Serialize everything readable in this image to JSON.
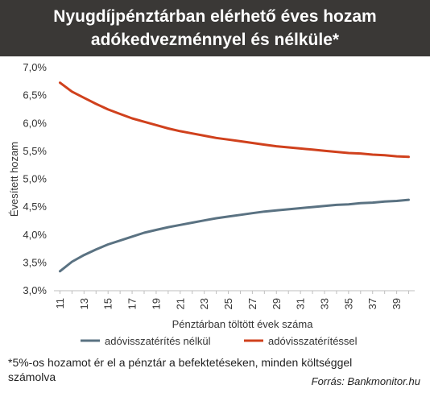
{
  "header": {
    "title_line1": "Nyugdíjpénztárban elérhető éves hozam",
    "title_line2": "adókedvezménnyel és nélküle*"
  },
  "chart_data": {
    "type": "line",
    "title": "Nyugdíjpénztárban elérhető éves hozam adókedvezménnyel és nélküle*",
    "xlabel": "Pénztárban töltött évek száma",
    "ylabel": "Évesített hozam",
    "x": [
      11,
      12,
      13,
      14,
      15,
      16,
      17,
      18,
      19,
      20,
      21,
      22,
      23,
      24,
      25,
      26,
      27,
      28,
      29,
      30,
      31,
      32,
      33,
      34,
      35,
      36,
      37,
      38,
      39,
      40
    ],
    "xticks": [
      11,
      13,
      15,
      17,
      19,
      21,
      23,
      25,
      27,
      29,
      31,
      33,
      35,
      37,
      39
    ],
    "yticks": [
      3.0,
      3.5,
      4.0,
      4.5,
      5.0,
      5.5,
      6.0,
      6.5,
      7.0
    ],
    "ytick_labels": [
      "3,0%",
      "3,5%",
      "4,0%",
      "4,5%",
      "5,0%",
      "5,5%",
      "6,0%",
      "6,5%",
      "7,0%"
    ],
    "ylim": [
      3.0,
      7.0
    ],
    "grid": false,
    "legend_position": "bottom",
    "series": [
      {
        "name": "adóvisszatérítés nélkül",
        "color": "#5a7282",
        "values": [
          3.35,
          3.52,
          3.64,
          3.74,
          3.83,
          3.9,
          3.97,
          4.04,
          4.09,
          4.14,
          4.18,
          4.22,
          4.26,
          4.3,
          4.33,
          4.36,
          4.39,
          4.42,
          4.44,
          4.46,
          4.48,
          4.5,
          4.52,
          4.54,
          4.55,
          4.57,
          4.58,
          4.6,
          4.61,
          4.63
        ]
      },
      {
        "name": "adóvisszatérítéssel",
        "color": "#d0411d",
        "values": [
          6.73,
          6.57,
          6.46,
          6.35,
          6.25,
          6.17,
          6.09,
          6.03,
          5.97,
          5.91,
          5.86,
          5.82,
          5.78,
          5.74,
          5.71,
          5.68,
          5.65,
          5.62,
          5.59,
          5.57,
          5.55,
          5.53,
          5.51,
          5.49,
          5.47,
          5.46,
          5.44,
          5.43,
          5.41,
          5.4
        ]
      }
    ]
  },
  "footnote": "*5%-os hozamot ér el a pénztár a befektetéseken, minden költséggel számolva",
  "source": "Forrás: Bankmonitor.hu"
}
